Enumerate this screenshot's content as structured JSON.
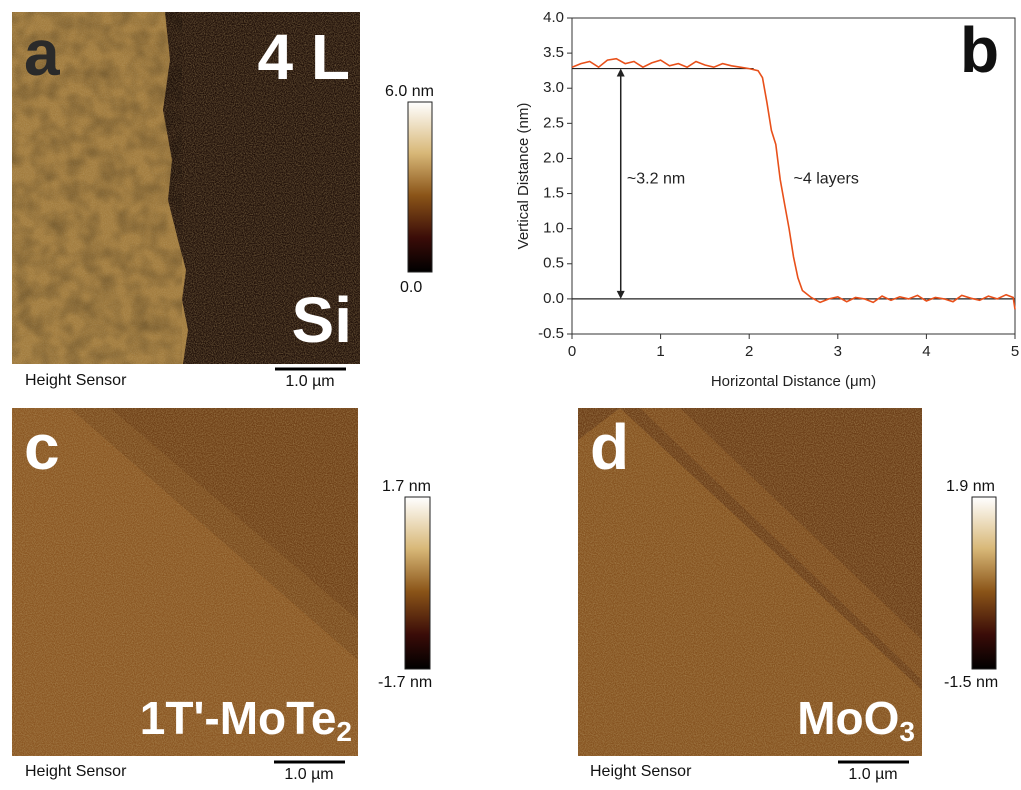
{
  "panels": [
    {
      "letter": "a",
      "sample_label": {
        "text": "4 L"
      },
      "substrate_label": "Si",
      "colorbar": {
        "max_label": "6.0 nm",
        "min_label": "0.0"
      },
      "caption": "Height Sensor",
      "scale_bar": "1.0 µm"
    },
    {
      "letter": "c",
      "sample_label": {
        "text": "1T'-MoTe",
        "subscript": "2"
      },
      "colorbar": {
        "max_label": "1.7 nm",
        "min_label": "-1.7 nm"
      },
      "caption": "Height Sensor",
      "scale_bar": "1.0 µm"
    },
    {
      "letter": "d",
      "sample_label": {
        "text": "MoO",
        "subscript": "3"
      },
      "colorbar": {
        "max_label": "1.9 nm",
        "min_label": "-1.5 nm"
      },
      "caption": "Height Sensor",
      "scale_bar": "1.0 µm"
    }
  ],
  "chart_data": {
    "type": "line",
    "panel_label": "b",
    "x_label": "Horizontal Distance (μm)",
    "y_label": "Vertical Distance (nm)",
    "xlim": [
      0,
      5
    ],
    "ylim": [
      -0.5,
      4.0
    ],
    "xticks": [
      0,
      1,
      2,
      3,
      4,
      5
    ],
    "yticks": [
      {
        "value": -0.5,
        "label": "-0.5"
      },
      {
        "value": 0,
        "label": "0.0"
      },
      {
        "value": 0.5,
        "label": "0.5"
      },
      {
        "value": 1,
        "label": "1.0"
      },
      {
        "value": 1.5,
        "label": "1.5"
      },
      {
        "value": 2,
        "label": "2.0"
      },
      {
        "value": 2.5,
        "label": "2.5"
      },
      {
        "value": 3,
        "label": "3.0"
      },
      {
        "value": 3.5,
        "label": "3.5"
      },
      {
        "value": 4,
        "label": "4.0"
      }
    ],
    "color": "#e8501a",
    "x": [
      0,
      0.1,
      0.2,
      0.3,
      0.4,
      0.5,
      0.6,
      0.7,
      0.8,
      0.9,
      1.0,
      1.1,
      1.2,
      1.3,
      1.4,
      1.5,
      1.6,
      1.7,
      1.8,
      1.9,
      2.0,
      2.1,
      2.15,
      2.2,
      2.25,
      2.3,
      2.35,
      2.4,
      2.45,
      2.5,
      2.55,
      2.6,
      2.7,
      2.8,
      2.9,
      3.0,
      3.1,
      3.2,
      3.3,
      3.4,
      3.5,
      3.6,
      3.7,
      3.8,
      3.9,
      4.0,
      4.1,
      4.2,
      4.3,
      4.4,
      4.5,
      4.6,
      4.7,
      4.8,
      4.9,
      4.98,
      5.0
    ],
    "values": [
      3.3,
      3.35,
      3.38,
      3.3,
      3.4,
      3.42,
      3.35,
      3.38,
      3.3,
      3.36,
      3.4,
      3.32,
      3.35,
      3.3,
      3.38,
      3.33,
      3.3,
      3.35,
      3.32,
      3.3,
      3.28,
      3.25,
      3.15,
      2.8,
      2.4,
      2.2,
      1.7,
      1.35,
      1.0,
      0.6,
      0.3,
      0.12,
      0.02,
      -0.05,
      0.0,
      0.03,
      -0.04,
      0.02,
      0.0,
      -0.05,
      0.04,
      -0.02,
      0.03,
      0.0,
      0.05,
      -0.03,
      0.02,
      0.0,
      -0.04,
      0.05,
      0.01,
      -0.02,
      0.04,
      0.0,
      0.06,
      0.02,
      -0.15
    ],
    "guides": [
      {
        "y": 3.28,
        "x": [
          0,
          2.05
        ]
      },
      {
        "y": 0,
        "x": [
          0,
          5
        ]
      }
    ],
    "arrow": {
      "x": 0.55,
      "y": [
        0,
        3.28
      ]
    },
    "annotations": [
      {
        "text": "~3.2 nm",
        "x": 0.62,
        "y": 1.7
      },
      {
        "text": "~4 layers",
        "x": 2.5,
        "y": 1.7
      }
    ]
  }
}
